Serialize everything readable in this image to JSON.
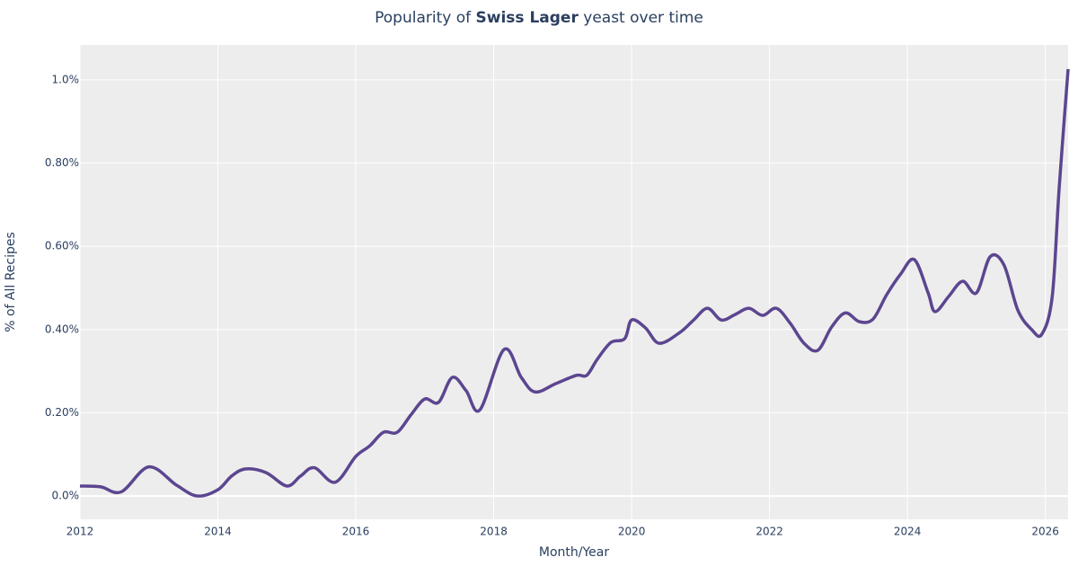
{
  "chart_data": {
    "type": "line",
    "title": [
      "Popularity of ",
      "Swiss Lager",
      " yeast over time"
    ],
    "x_label": "Month/Year",
    "y_label": "% of All Recipes",
    "x": [
      2012.0,
      2012.3,
      2012.6,
      2013.0,
      2013.4,
      2013.7,
      2014.0,
      2014.2,
      2014.4,
      2014.7,
      2015.0,
      2015.2,
      2015.4,
      2015.7,
      2016.0,
      2016.2,
      2016.4,
      2016.6,
      2016.8,
      2017.0,
      2017.2,
      2017.4,
      2017.6,
      2017.8,
      2018.15,
      2018.4,
      2018.6,
      2018.9,
      2019.2,
      2019.35,
      2019.5,
      2019.7,
      2019.9,
      2020.0,
      2020.2,
      2020.4,
      2020.7,
      2020.9,
      2021.1,
      2021.3,
      2021.5,
      2021.7,
      2021.9,
      2022.1,
      2022.3,
      2022.5,
      2022.7,
      2022.9,
      2023.1,
      2023.3,
      2023.5,
      2023.7,
      2023.9,
      2024.1,
      2024.3,
      2024.4,
      2024.6,
      2024.8,
      2025.0,
      2025.2,
      2025.4,
      2025.6,
      2025.8,
      2025.95,
      2026.1,
      2026.2,
      2026.33
    ],
    "values": [
      0.024,
      0.022,
      0.01,
      0.07,
      0.026,
      0.0,
      0.015,
      0.048,
      0.065,
      0.056,
      0.024,
      0.048,
      0.068,
      0.033,
      0.095,
      0.12,
      0.153,
      0.153,
      0.195,
      0.233,
      0.225,
      0.285,
      0.253,
      0.207,
      0.352,
      0.285,
      0.25,
      0.27,
      0.29,
      0.29,
      0.328,
      0.369,
      0.378,
      0.423,
      0.404,
      0.367,
      0.393,
      0.423,
      0.451,
      0.423,
      0.436,
      0.451,
      0.434,
      0.451,
      0.415,
      0.367,
      0.35,
      0.406,
      0.44,
      0.419,
      0.425,
      0.484,
      0.533,
      0.568,
      0.488,
      0.443,
      0.48,
      0.516,
      0.488,
      0.575,
      0.555,
      0.447,
      0.4,
      0.389,
      0.48,
      0.74,
      1.026
    ],
    "color": "#5b4690",
    "xlim": [
      2012,
      2026.33
    ],
    "xticks": [
      2012,
      2014,
      2016,
      2018,
      2020,
      2022,
      2024,
      2026
    ],
    "ylim": [
      -0.056,
      1.084
    ],
    "yticks": [
      {
        "value": 0,
        "label": "0.0%"
      },
      {
        "value": 0.2,
        "label": "0.20%"
      },
      {
        "value": 0.4,
        "label": "0.40%"
      },
      {
        "value": 0.6,
        "label": "0.60%"
      },
      {
        "value": 0.8,
        "label": "0.80%"
      },
      {
        "value": 1.0,
        "label": "1.0%"
      }
    ],
    "grid": true
  }
}
